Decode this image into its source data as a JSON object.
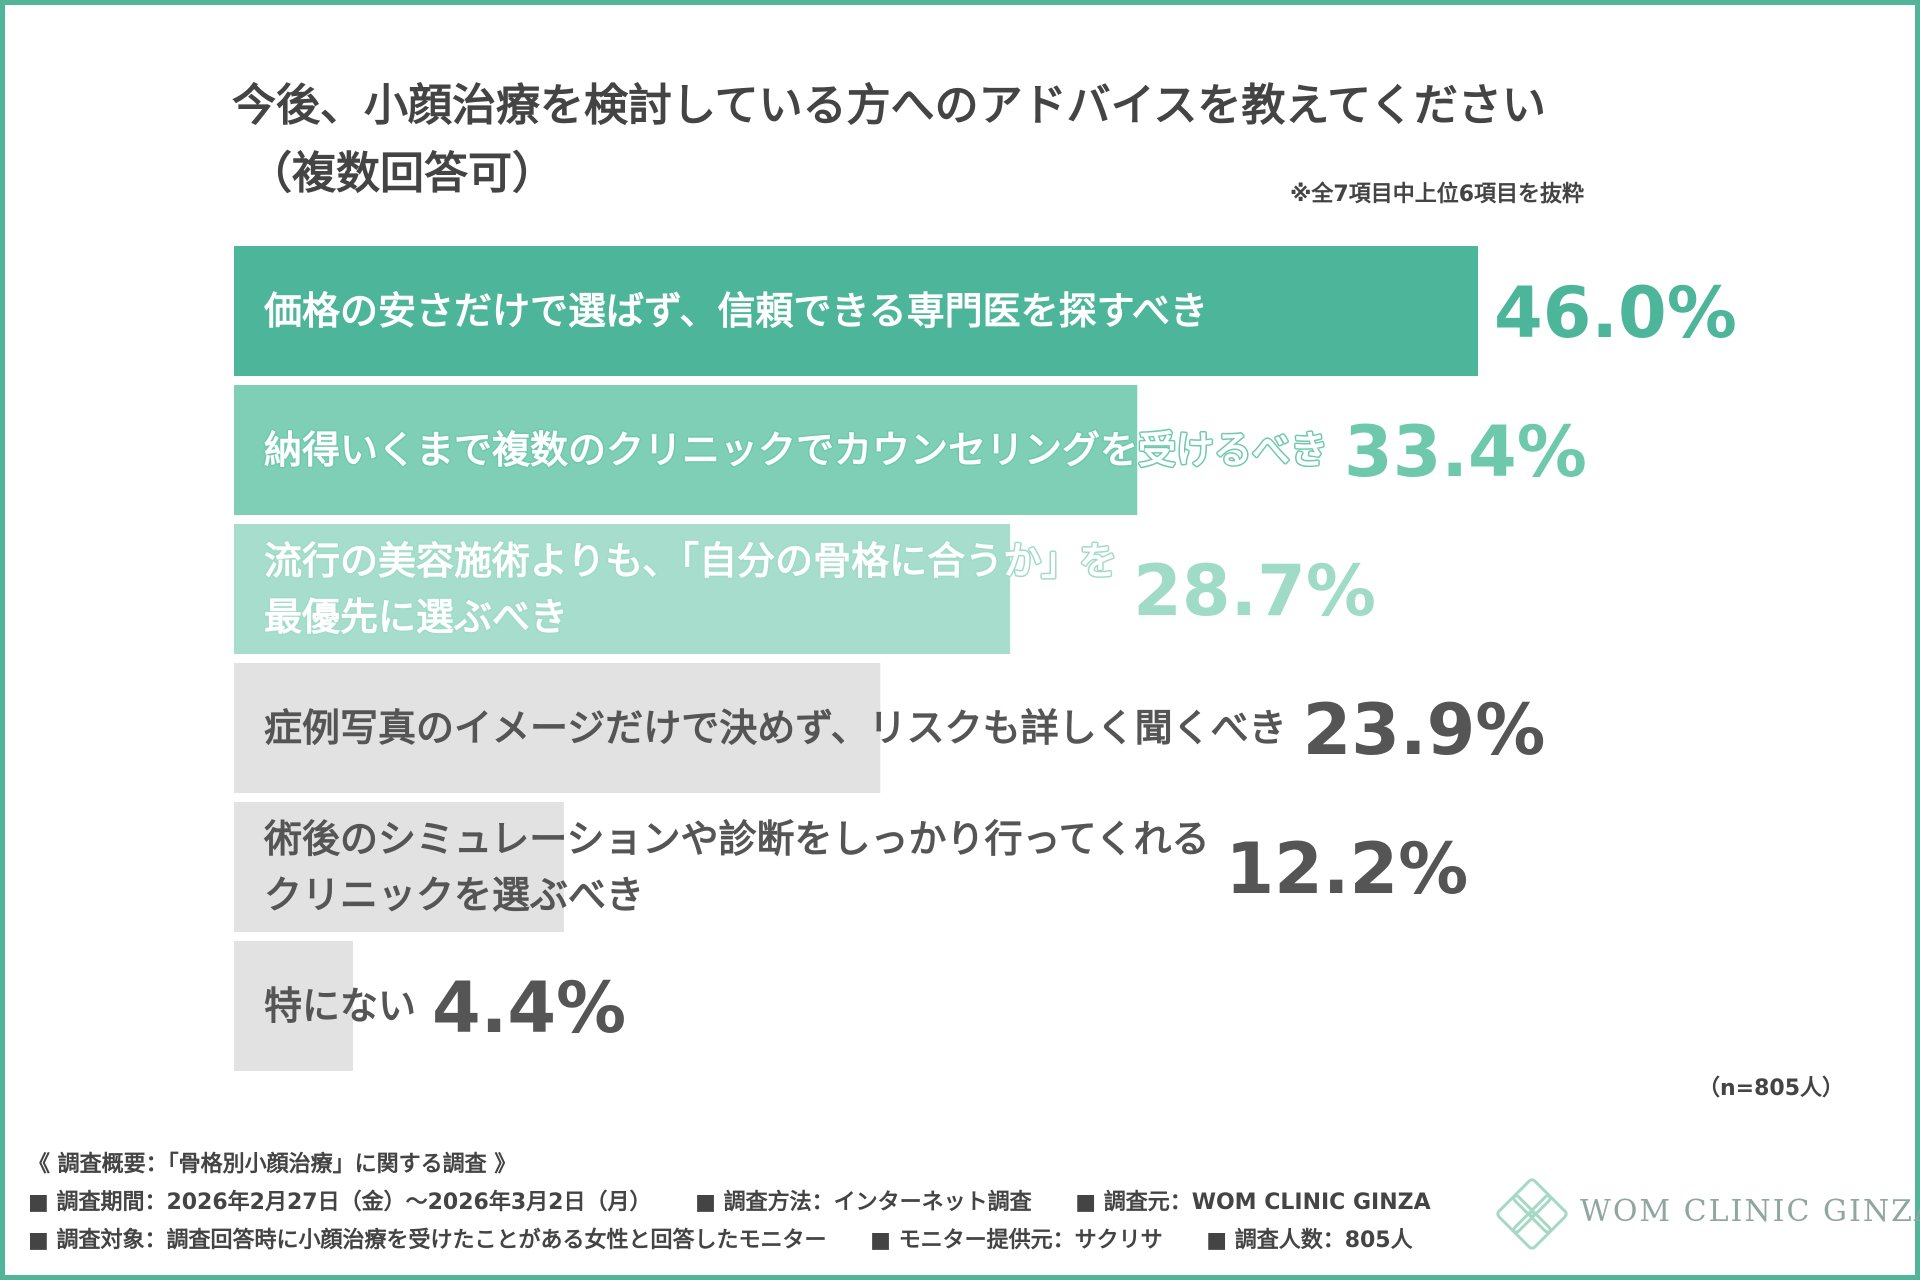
{
  "chart_data": {
    "type": "bar",
    "orientation": "horizontal",
    "title_line1": "今後、小顔治療を検討している方へのアドバイスを教えてください",
    "title_line2": "（複数回答可）",
    "note": "※全7項目中上位6項目を抜粋",
    "categories": [
      [
        "価格の安さだけで選ばず、信頼できる専門医を探すべき"
      ],
      [
        "納得いくまで複数のクリニックでカウンセリングを受けるべき"
      ],
      [
        "流行の美容施術よりも、「自分の骨格に合うか」を",
        "最優先に選ぶべき"
      ],
      [
        "症例写真のイメージだけで決めず、リスクも詳しく聞くべき"
      ],
      [
        "術後のシミュレーションや診断をしっかり行ってくれる",
        "クリニックを選ぶべき"
      ],
      [
        "特にない"
      ]
    ],
    "values": [
      46.0,
      33.4,
      28.7,
      23.9,
      12.2,
      4.4
    ],
    "value_labels": [
      "46.0%",
      "33.4%",
      "28.7%",
      "23.9%",
      "12.2%",
      "4.4%"
    ],
    "unit": "%",
    "xlim": [
      0,
      46.0
    ],
    "colors": [
      "#4db599",
      "#7fcfb6",
      "#a6ddcc",
      "#e2e2e2",
      "#e2e2e2",
      "#e2e2e2"
    ],
    "value_colors": [
      "#4db599",
      "#6ec9ac",
      "#a0dbc8",
      "#555555",
      "#555555",
      "#555555"
    ],
    "grid": false,
    "legend": "none",
    "sample_size": "（n=805人）"
  },
  "survey": {
    "heading": "《 調査概要：「骨格別小顔治療」に関する調査 》",
    "period": "■ 調査期間：2026年2月27日（金）〜2026年3月2日（月）",
    "method": "■ 調査方法：インターネット調査",
    "source": "■ 調査元：WOM CLINIC GINZA",
    "target": "■ 調査対象：調査回答時に小顔治療を受けたことがある女性と回答したモニター",
    "provider": "■ モニター提供元：サクリサ",
    "count": "■ 調査人数：805人"
  },
  "logo": {
    "text": "WOM CLINIC GINZA",
    "color": "#8fa7a0"
  },
  "frame_color": "#52b59a"
}
